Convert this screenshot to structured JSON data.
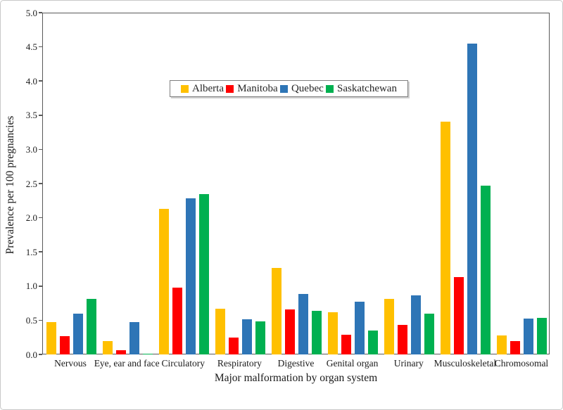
{
  "figure": {
    "background": "#ffffff",
    "border_color": "#c9c9c9",
    "axis_color": "#595959",
    "text_color": "#1a1a1a"
  },
  "chart_data": {
    "type": "bar",
    "title": "",
    "xlabel": "Major malformation by organ system",
    "ylabel": "Prevalence per 100 pregnancies",
    "categories": [
      "Nervous",
      "Eye, ear and face",
      "Circulatory",
      "Respiratory",
      "Digestive",
      "Genital organ",
      "Urinary",
      "Musculoskeletal",
      "Chromosomal"
    ],
    "series": [
      {
        "name": "Alberta",
        "color": "#FFC000",
        "values": [
          0.47,
          0.2,
          2.13,
          0.67,
          1.27,
          0.62,
          0.81,
          3.41,
          0.28
        ]
      },
      {
        "name": "Manitoba",
        "color": "#FF0000",
        "values": [
          0.27,
          0.06,
          0.98,
          0.25,
          0.66,
          0.29,
          0.43,
          1.13,
          0.2
        ]
      },
      {
        "name": "Quebec",
        "color": "#2E75B6",
        "values": [
          0.6,
          0.47,
          2.28,
          0.51,
          0.88,
          0.77,
          0.86,
          4.55,
          0.52
        ]
      },
      {
        "name": "Saskatchewan",
        "color": "#00B050",
        "values": [
          0.81,
          0.01,
          2.35,
          0.48,
          0.64,
          0.35,
          0.6,
          2.47,
          0.53
        ]
      }
    ],
    "ylim": [
      0,
      5
    ],
    "ytick_step": 0.5,
    "ytick_labels": [
      "0.0",
      "0.5",
      "1.0",
      "1.5",
      "2.0",
      "2.5",
      "3.0",
      "3.5",
      "4.0",
      "4.5",
      "5.0"
    ],
    "grid": "off",
    "legend_position": "inside-top-center"
  }
}
